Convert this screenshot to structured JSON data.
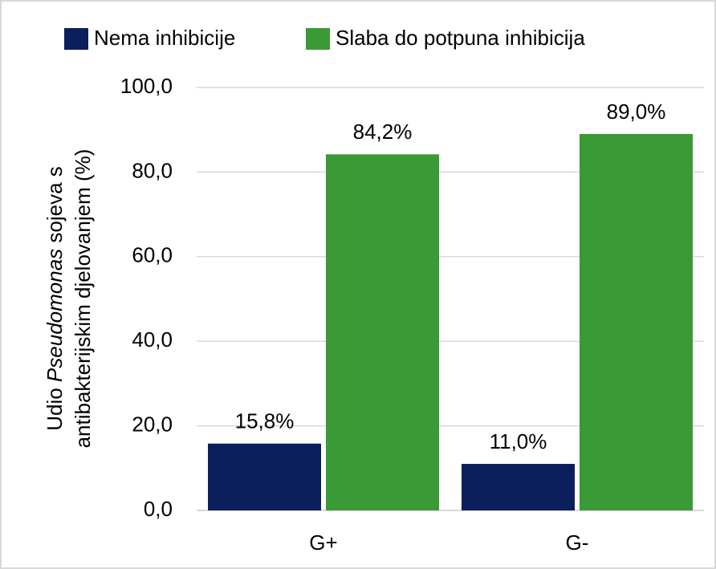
{
  "chart_data": {
    "type": "bar",
    "categories": [
      "G+",
      "G-"
    ],
    "series": [
      {
        "name": "Nema inhibicije",
        "color": "#0b1f5c",
        "values": [
          15.8,
          11.0
        ],
        "value_labels": [
          "15,8%",
          "11,0%"
        ]
      },
      {
        "name": "Slaba do potpuna inhibicija",
        "color": "#3a9a35",
        "values": [
          84.2,
          89.0
        ],
        "value_labels": [
          "84,2%",
          "89,0%"
        ]
      }
    ],
    "ylabel": [
      [
        "Udio ",
        "Pseudomonas",
        " sojeva s"
      ],
      [
        "antibakterijskim djelovanjem (%)"
      ]
    ],
    "ylim": [
      0,
      100
    ],
    "yticks": [
      {
        "value": 0,
        "label": "0,0"
      },
      {
        "value": 20,
        "label": "20,0"
      },
      {
        "value": 40,
        "label": "40,0"
      },
      {
        "value": 60,
        "label": "60,0"
      },
      {
        "value": 80,
        "label": "80,0"
      },
      {
        "value": 100,
        "label": "100,0"
      }
    ],
    "grid": true,
    "legend": "top"
  }
}
